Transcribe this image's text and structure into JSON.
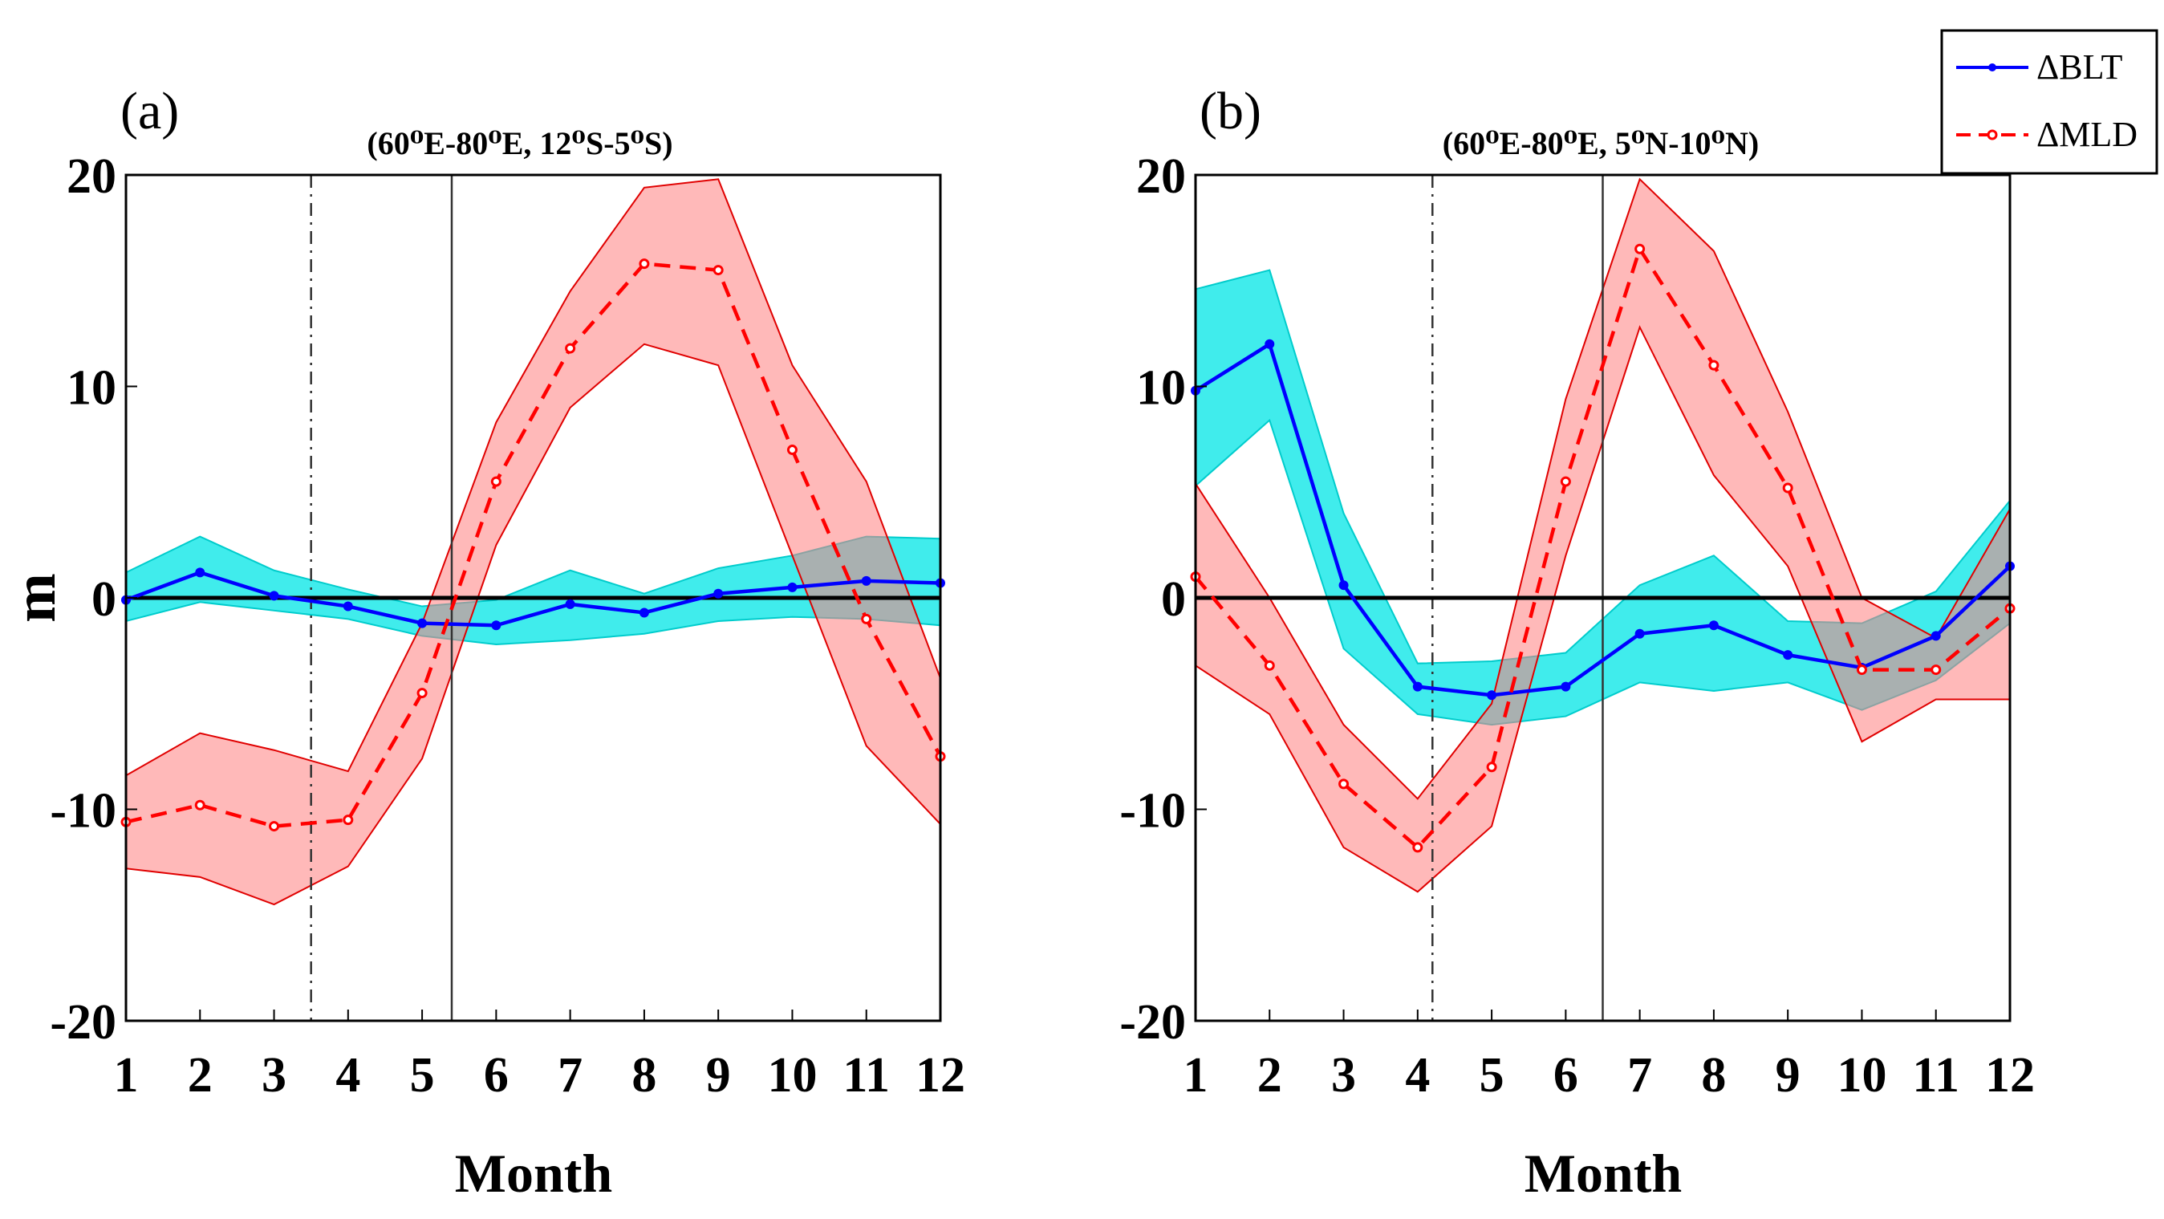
{
  "chart_data": [
    {
      "type": "line",
      "panel_label": "(a)",
      "title": "(60⁰E-80⁰E, 12⁰S-5⁰S)",
      "xlabel": "Month",
      "ylabel": "m",
      "x": [
        1,
        2,
        3,
        4,
        5,
        6,
        7,
        8,
        9,
        10,
        11,
        12
      ],
      "xticks": [
        "1",
        "2",
        "3",
        "4",
        "5",
        "6",
        "7",
        "8",
        "9",
        "10",
        "11",
        "12"
      ],
      "yticks": [
        "-20",
        "-10",
        "0",
        "10",
        "20"
      ],
      "ytick_values": [
        -20,
        -10,
        0,
        10,
        20
      ],
      "xlim": [
        1,
        12
      ],
      "ylim": [
        -20,
        20
      ],
      "zero_line": 0,
      "vlines": [
        {
          "x": 3.5,
          "style": "dashdot"
        },
        {
          "x": 5.4,
          "style": "solid"
        }
      ],
      "series": [
        {
          "name": "ΔBLT",
          "color": "#0000ff",
          "dash": "solid",
          "marker": "dot",
          "values": [
            -0.1,
            1.2,
            0.1,
            -0.4,
            -1.2,
            -1.3,
            -0.3,
            -0.7,
            0.2,
            0.5,
            0.8,
            0.7
          ],
          "band_upper": [
            1.2,
            2.9,
            1.3,
            0.4,
            -0.4,
            -0.1,
            1.3,
            0.2,
            1.4,
            2.0,
            2.9,
            2.8
          ],
          "band_lower": [
            -1.1,
            -0.2,
            -0.6,
            -1.0,
            -1.8,
            -2.2,
            -2.0,
            -1.7,
            -1.1,
            -0.9,
            -1.0,
            -1.3
          ],
          "band_color": "#00e6e6"
        },
        {
          "name": "ΔMLD",
          "color": "#ff0000",
          "dash": "dashed",
          "marker": "circle",
          "values": [
            -10.6,
            -9.8,
            -10.8,
            -10.5,
            -4.5,
            5.5,
            11.8,
            15.8,
            15.5,
            7.0,
            -1.0,
            -7.5
          ],
          "band_upper": [
            -8.4,
            -6.4,
            -7.2,
            -8.2,
            -1.2,
            8.3,
            14.5,
            19.4,
            19.8,
            11.0,
            5.5,
            -3.8
          ],
          "band_lower": [
            -12.8,
            -13.2,
            -14.5,
            -12.7,
            -7.6,
            2.5,
            9.0,
            12.0,
            11.0,
            2.0,
            -7.0,
            -10.7
          ],
          "band_color": "#ff7f7f"
        }
      ]
    },
    {
      "type": "line",
      "panel_label": "(b)",
      "title": "(60⁰E-80⁰E, 5⁰N-10⁰N)",
      "xlabel": "Month",
      "ylabel": "",
      "x": [
        1,
        2,
        3,
        4,
        5,
        6,
        7,
        8,
        9,
        10,
        11,
        12
      ],
      "xticks": [
        "1",
        "2",
        "3",
        "4",
        "5",
        "6",
        "7",
        "8",
        "9",
        "10",
        "11",
        "12"
      ],
      "yticks": [
        "-20",
        "-10",
        "0",
        "10",
        "20"
      ],
      "ytick_values": [
        -20,
        -10,
        0,
        10,
        20
      ],
      "xlim": [
        1,
        12
      ],
      "ylim": [
        -20,
        20
      ],
      "zero_line": 0,
      "vlines": [
        {
          "x": 4.2,
          "style": "dashdot"
        },
        {
          "x": 6.5,
          "style": "solid"
        }
      ],
      "series": [
        {
          "name": "ΔBLT",
          "color": "#0000ff",
          "dash": "solid",
          "marker": "dot",
          "values": [
            9.8,
            12.0,
            0.6,
            -4.2,
            -4.6,
            -4.2,
            -1.7,
            -1.3,
            -2.7,
            -3.3,
            -1.8,
            1.5
          ],
          "band_upper": [
            14.6,
            15.5,
            4.0,
            -3.1,
            -3.0,
            -2.6,
            0.6,
            2.0,
            -1.1,
            -1.2,
            0.3,
            4.6
          ],
          "band_lower": [
            5.3,
            8.4,
            -2.4,
            -5.5,
            -6.0,
            -5.6,
            -4.0,
            -4.4,
            -4.0,
            -5.3,
            -3.9,
            -1.2
          ],
          "band_color": "#00e6e6"
        },
        {
          "name": "ΔMLD",
          "color": "#ff0000",
          "dash": "dashed",
          "marker": "circle",
          "values": [
            1.0,
            -3.2,
            -8.8,
            -11.8,
            -8.0,
            5.5,
            16.5,
            11.0,
            5.2,
            -3.4,
            -3.4,
            -0.5
          ],
          "band_upper": [
            5.4,
            0.0,
            -6.0,
            -9.5,
            -5.0,
            9.4,
            19.8,
            16.4,
            8.8,
            0.0,
            -1.9,
            4.2
          ],
          "band_lower": [
            -3.2,
            -5.5,
            -11.8,
            -13.9,
            -10.8,
            2.0,
            12.8,
            5.8,
            1.5,
            -6.8,
            -4.8,
            -4.8
          ],
          "band_color": "#ff7f7f"
        }
      ]
    }
  ]
}
